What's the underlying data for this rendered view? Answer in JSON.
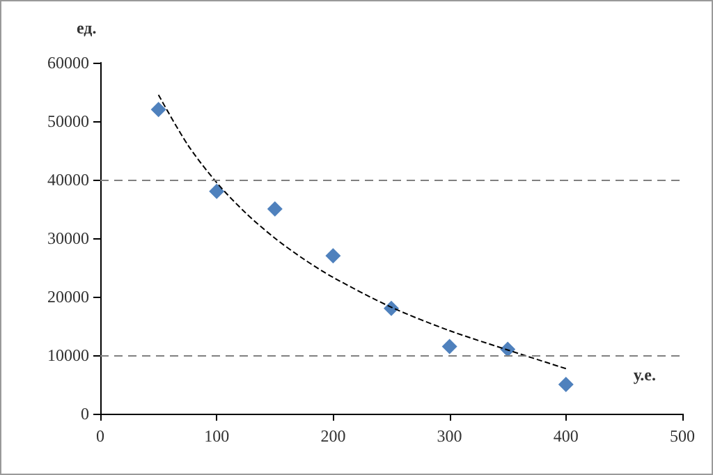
{
  "chart_data": {
    "type": "scatter",
    "xlabel": "у.е.",
    "ylabel": "ед.",
    "xlim": [
      0,
      500
    ],
    "xticks": [
      0,
      100,
      200,
      300,
      400,
      500
    ],
    "ylim": [
      0,
      60000
    ],
    "yticks": [
      0,
      10000,
      20000,
      30000,
      40000,
      50000,
      60000
    ],
    "marker": "diamond",
    "series": [
      {
        "color": "#4f81bd",
        "x": [
          50,
          100,
          150,
          200,
          250,
          300,
          350,
          400
        ],
        "values": [
          52000,
          38000,
          35000,
          27000,
          18000,
          11500,
          11000,
          5000
        ]
      },
      {
        "type": "line",
        "color": "#000000",
        "marker": "none",
        "line_style": "dashed",
        "x": [
          50,
          75,
          100,
          125,
          150,
          175,
          200,
          250,
          300,
          350,
          400
        ],
        "values": [
          54500,
          46000,
          39500,
          34300,
          30000,
          26400,
          23300,
          18200,
          14200,
          10900,
          7700
        ]
      }
    ],
    "ref_lines": [
      {
        "axis": "y",
        "value": 10000,
        "color": "#808080",
        "line_style": "dashed"
      },
      {
        "axis": "y",
        "value": 40000,
        "color": "#808080",
        "line_style": "dashed"
      }
    ]
  }
}
